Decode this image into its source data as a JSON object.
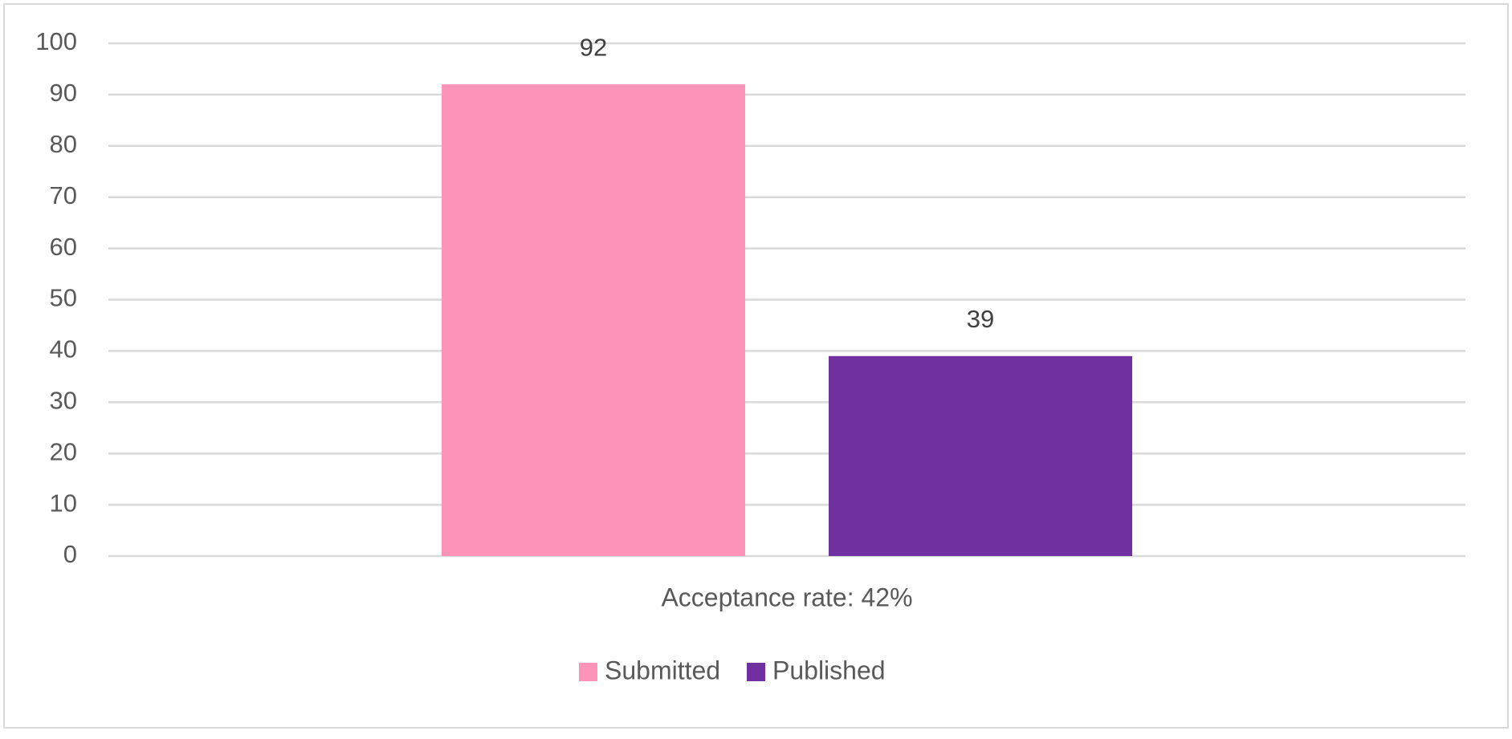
{
  "chart_data": {
    "type": "bar",
    "categories": [
      "Acceptance rate: 42%"
    ],
    "series": [
      {
        "name": "Submitted",
        "color": "#fd93b8",
        "values": [
          92
        ]
      },
      {
        "name": "Published",
        "color": "#7030a0",
        "values": [
          39
        ]
      }
    ],
    "ylim": [
      0,
      100
    ],
    "yticks": [
      0,
      10,
      20,
      30,
      40,
      50,
      60,
      70,
      80,
      90,
      100
    ],
    "grid": true,
    "legend": "bottom"
  }
}
